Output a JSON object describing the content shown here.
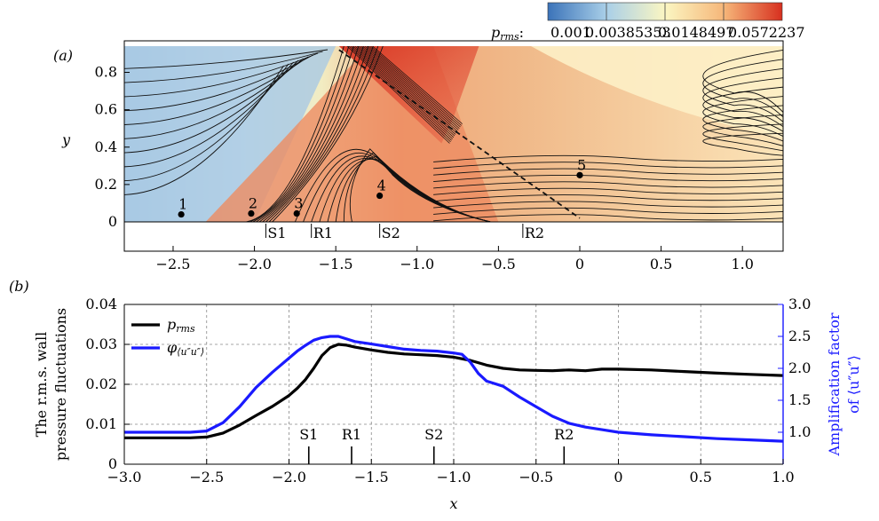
{
  "chart_data": [
    {
      "panel_label": "(a)",
      "type": "heatmap",
      "xlabel": "",
      "ylabel": "y",
      "xlim": [
        -2.8,
        1.25
      ],
      "ylim": [
        -0.05,
        0.92
      ],
      "x_ticks": [
        "−2.5",
        "−2.0",
        "−1.5",
        "−1.0",
        "−0.5",
        "0",
        "0.5",
        "1.0"
      ],
      "x_tick_values": [
        -2.5,
        -2.0,
        -1.5,
        -1.0,
        -0.5,
        0,
        0.5,
        1.0
      ],
      "y_ticks": [
        "0",
        "0.2",
        "0.4",
        "0.6",
        "0.8"
      ],
      "y_tick_values": [
        0,
        0.2,
        0.4,
        0.6,
        0.8
      ],
      "colorbar": {
        "label": "p",
        "label_subscript": "rms",
        "label_suffix": ":",
        "tick_labels": [
          "0.001",
          "0.00385353",
          "0.0148497",
          "0.0572237"
        ],
        "colors": [
          "#3b73b9",
          "#a9cfe8",
          "#fbf6c2",
          "#f6b77a",
          "#d7301f"
        ]
      },
      "probes": [
        {
          "label": "1",
          "x": -2.45,
          "y": 0.04
        },
        {
          "label": "2",
          "x": -2.02,
          "y": 0.045
        },
        {
          "label": "3",
          "x": -1.74,
          "y": 0.045
        },
        {
          "label": "4",
          "x": -1.23,
          "y": 0.14
        },
        {
          "label": "5",
          "x": 0.0,
          "y": 0.25
        }
      ],
      "markers": [
        {
          "label": "S1",
          "x": -1.93
        },
        {
          "label": "R1",
          "x": -1.65
        },
        {
          "label": "S2",
          "x": -1.23
        },
        {
          "label": "R2",
          "x": -0.35
        }
      ],
      "shock_line": {
        "x": [
          -1.48,
          0.0
        ],
        "y": [
          0.92,
          0.02
        ]
      }
    },
    {
      "panel_label": "(b)",
      "type": "line",
      "xlabel": "x",
      "ylabel_left": "The r.m.s. wall pressure fluctuations",
      "ylabel_right": "Amplification factor of ⟨u″u″⟩",
      "xlim": [
        -3.0,
        1.0
      ],
      "ylim_left": [
        0,
        0.04
      ],
      "ylim_right": [
        0.5,
        3.0
      ],
      "x_ticks": [
        "−3.0",
        "−2.5",
        "−2.0",
        "−1.5",
        "−1.0",
        "−0.5",
        "0",
        "0.5",
        "1.0"
      ],
      "x_tick_values": [
        -3.0,
        -2.5,
        -2.0,
        -1.5,
        -1.0,
        -0.5,
        0,
        0.5,
        1.0
      ],
      "y_ticks_left": [
        "0",
        "0.01",
        "0.02",
        "0.03",
        "0.04"
      ],
      "y_tick_values_left": [
        0,
        0.01,
        0.02,
        0.03,
        0.04
      ],
      "y_ticks_right": [
        "1.0",
        "1.5",
        "2.0",
        "2.5",
        "3.0"
      ],
      "y_tick_values_right": [
        1.0,
        1.5,
        2.0,
        2.5,
        3.0
      ],
      "grid": true,
      "legend_position": "top-left",
      "series": [
        {
          "name": "p",
          "name_subscript": "rms",
          "color": "#000000",
          "axis": "left",
          "x": [
            -3.0,
            -2.6,
            -2.5,
            -2.4,
            -2.3,
            -2.2,
            -2.1,
            -2.0,
            -1.95,
            -1.9,
            -1.85,
            -1.8,
            -1.75,
            -1.7,
            -1.65,
            -1.6,
            -1.5,
            -1.4,
            -1.3,
            -1.2,
            -1.1,
            -1.0,
            -0.9,
            -0.8,
            -0.7,
            -0.6,
            -0.5,
            -0.4,
            -0.3,
            -0.2,
            -0.1,
            0.0,
            0.2,
            0.4,
            0.6,
            0.8,
            1.0
          ],
          "values": [
            0.0066,
            0.0066,
            0.0068,
            0.0078,
            0.0098,
            0.0122,
            0.0145,
            0.0172,
            0.019,
            0.0212,
            0.024,
            0.0272,
            0.0292,
            0.03,
            0.0298,
            0.0293,
            0.0286,
            0.028,
            0.0276,
            0.0274,
            0.0272,
            0.0268,
            0.026,
            0.0248,
            0.024,
            0.0236,
            0.0235,
            0.0234,
            0.0236,
            0.0234,
            0.0238,
            0.0238,
            0.0236,
            0.0232,
            0.0228,
            0.0225,
            0.0222
          ]
        },
        {
          "name": "φ",
          "name_subscript": "⟨u″u″⟩",
          "color": "#1a1aff",
          "axis": "right",
          "x": [
            -3.0,
            -2.6,
            -2.5,
            -2.4,
            -2.3,
            -2.2,
            -2.1,
            -2.0,
            -1.95,
            -1.9,
            -1.85,
            -1.8,
            -1.75,
            -1.7,
            -1.65,
            -1.6,
            -1.5,
            -1.4,
            -1.3,
            -1.2,
            -1.1,
            -1.0,
            -0.95,
            -0.9,
            -0.85,
            -0.8,
            -0.7,
            -0.6,
            -0.5,
            -0.4,
            -0.3,
            -0.2,
            -0.1,
            0.0,
            0.2,
            0.4,
            0.6,
            0.8,
            1.0
          ],
          "values": [
            1.0,
            1.0,
            1.02,
            1.15,
            1.4,
            1.7,
            1.94,
            2.16,
            2.27,
            2.36,
            2.44,
            2.48,
            2.5,
            2.5,
            2.46,
            2.42,
            2.38,
            2.34,
            2.3,
            2.28,
            2.27,
            2.24,
            2.22,
            2.1,
            1.92,
            1.8,
            1.72,
            1.55,
            1.4,
            1.25,
            1.14,
            1.08,
            1.04,
            1.0,
            0.96,
            0.93,
            0.9,
            0.88,
            0.86
          ]
        }
      ],
      "markers": [
        {
          "label": "S1",
          "x": -1.88
        },
        {
          "label": "R1",
          "x": -1.62
        },
        {
          "label": "S2",
          "x": -1.12
        },
        {
          "label": "R2",
          "x": -0.33
        }
      ]
    }
  ]
}
